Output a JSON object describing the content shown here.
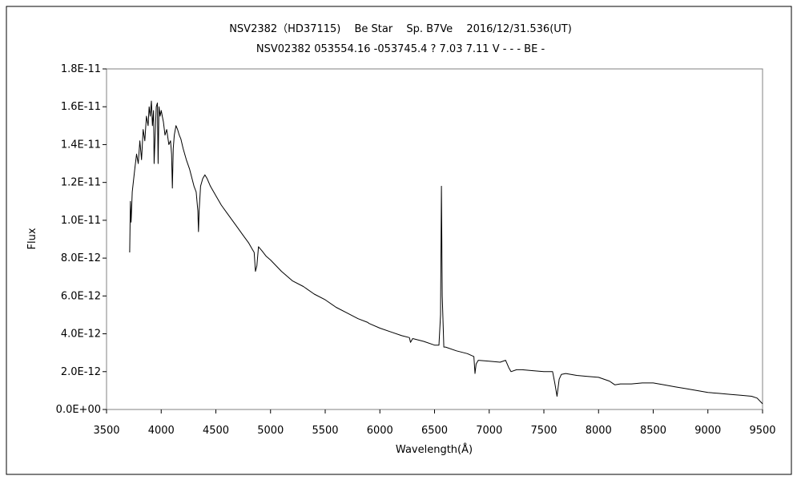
{
  "chart_data": {
    "type": "line",
    "title": "NSV2382（HD37115)　 Be Star　 Sp. B7Ve　 2016/12/31.536(UT)",
    "subtitle": "NSV02382 053554.16 -053745.4 ? 7.03 7.11 V - - - BE -",
    "xlabel": "Wavelength(Å)",
    "ylabel": "Flux",
    "xlim": [
      3500,
      9500
    ],
    "ylim": [
      0,
      1.8e-11
    ],
    "x_ticks": [
      3500,
      4000,
      4500,
      5000,
      5500,
      6000,
      6500,
      7000,
      7500,
      8000,
      8500,
      9000,
      9500
    ],
    "x_tick_labels": [
      "3500",
      "4000",
      "4500",
      "5000",
      "5500",
      "6000",
      "6500",
      "7000",
      "7500",
      "8000",
      "8500",
      "9000",
      "9500"
    ],
    "y_ticks": [
      0,
      2e-12,
      4e-12,
      6e-12,
      8e-12,
      1e-11,
      1.2e-11,
      1.4e-11,
      1.6e-11,
      1.8e-11
    ],
    "y_tick_labels": [
      "0.0E+00",
      "2.0E-12",
      "4.0E-12",
      "6.0E-12",
      "8.0E-12",
      "1.0E-11",
      "1.2E-11",
      "1.4E-11",
      "1.6E-11",
      "1.8E-11"
    ],
    "grid": false,
    "legend": "none",
    "line_color": "#000000",
    "series": [
      {
        "x": [
          3712,
          3718,
          3725,
          3735,
          3745,
          3760,
          3775,
          3790,
          3805,
          3820,
          3835,
          3850,
          3865,
          3880,
          3890,
          3900,
          3910,
          3920,
          3930,
          3935,
          3945,
          3955,
          3965,
          3972,
          3980,
          3990,
          4000,
          4010,
          4020,
          4035,
          4050,
          4070,
          4085,
          4095,
          4102,
          4110,
          4120,
          4135,
          4150,
          4165,
          4180,
          4200,
          4230,
          4260,
          4300,
          4320,
          4335,
          4341,
          4347,
          4360,
          4380,
          4400,
          4420,
          4450,
          4500,
          4550,
          4600,
          4650,
          4700,
          4750,
          4800,
          4830,
          4850,
          4862,
          4875,
          4890,
          4920,
          4960,
          5000,
          5100,
          5200,
          5300,
          5400,
          5500,
          5600,
          5700,
          5800,
          5890,
          5900,
          6000,
          6100,
          6200,
          6270,
          6280,
          6300,
          6400,
          6500,
          6540,
          6555,
          6563,
          6570,
          6585,
          6600,
          6700,
          6800,
          6860,
          6870,
          6880,
          6900,
          7000,
          7100,
          7150,
          7180,
          7200,
          7250,
          7300,
          7400,
          7500,
          7580,
          7600,
          7620,
          7640,
          7660,
          7700,
          7800,
          7900,
          8000,
          8100,
          8150,
          8200,
          8300,
          8400,
          8500,
          8600,
          8700,
          8800,
          8900,
          9000,
          9100,
          9200,
          9300,
          9400,
          9450,
          9500
        ],
        "y": [
          8.3e-12,
          1.1e-11,
          9.9e-12,
          1.15e-11,
          1.2e-11,
          1.28e-11,
          1.35e-11,
          1.3e-11,
          1.42e-11,
          1.32e-11,
          1.48e-11,
          1.42e-11,
          1.55e-11,
          1.5e-11,
          1.6e-11,
          1.55e-11,
          1.63e-11,
          1.5e-11,
          1.58e-11,
          1.3e-11,
          1.45e-11,
          1.6e-11,
          1.62e-11,
          1.3e-11,
          1.6e-11,
          1.55e-11,
          1.58e-11,
          1.55e-11,
          1.52e-11,
          1.45e-11,
          1.48e-11,
          1.4e-11,
          1.42e-11,
          1.35e-11,
          1.17e-11,
          1.38e-11,
          1.45e-11,
          1.5e-11,
          1.48e-11,
          1.45e-11,
          1.43e-11,
          1.38e-11,
          1.32e-11,
          1.27e-11,
          1.18e-11,
          1.15e-11,
          1.05e-11,
          9.4e-12,
          1.05e-11,
          1.18e-11,
          1.22e-11,
          1.24e-11,
          1.22e-11,
          1.18e-11,
          1.13e-11,
          1.08e-11,
          1.04e-11,
          1e-11,
          9.6e-12,
          9.2e-12,
          8.8e-12,
          8.5e-12,
          8.3e-12,
          7.3e-12,
          7.6e-12,
          8.6e-12,
          8.4e-12,
          8.1e-12,
          7.9e-12,
          7.3e-12,
          6.8e-12,
          6.5e-12,
          6.1e-12,
          5.8e-12,
          5.4e-12,
          5.1e-12,
          4.8e-12,
          4.6e-12,
          4.55e-12,
          4.3e-12,
          4.1e-12,
          3.9e-12,
          3.8e-12,
          3.55e-12,
          3.75e-12,
          3.6e-12,
          3.4e-12,
          3.4e-12,
          5e-12,
          1.18e-11,
          6e-12,
          3.3e-12,
          3.3e-12,
          3.1e-12,
          2.95e-12,
          2.8e-12,
          1.9e-12,
          2.4e-12,
          2.6e-12,
          2.55e-12,
          2.5e-12,
          2.6e-12,
          2.2e-12,
          2e-12,
          2.1e-12,
          2.1e-12,
          2.05e-12,
          2e-12,
          2e-12,
          1.4e-12,
          7e-13,
          1.6e-12,
          1.85e-12,
          1.9e-12,
          1.8e-12,
          1.75e-12,
          1.7e-12,
          1.5e-12,
          1.3e-12,
          1.35e-12,
          1.35e-12,
          1.4e-12,
          1.4e-12,
          1.3e-12,
          1.2e-12,
          1.1e-12,
          1e-12,
          9e-13,
          8.5e-13,
          8e-13,
          7.5e-13,
          7e-13,
          6e-13,
          3e-13
        ]
      }
    ]
  }
}
